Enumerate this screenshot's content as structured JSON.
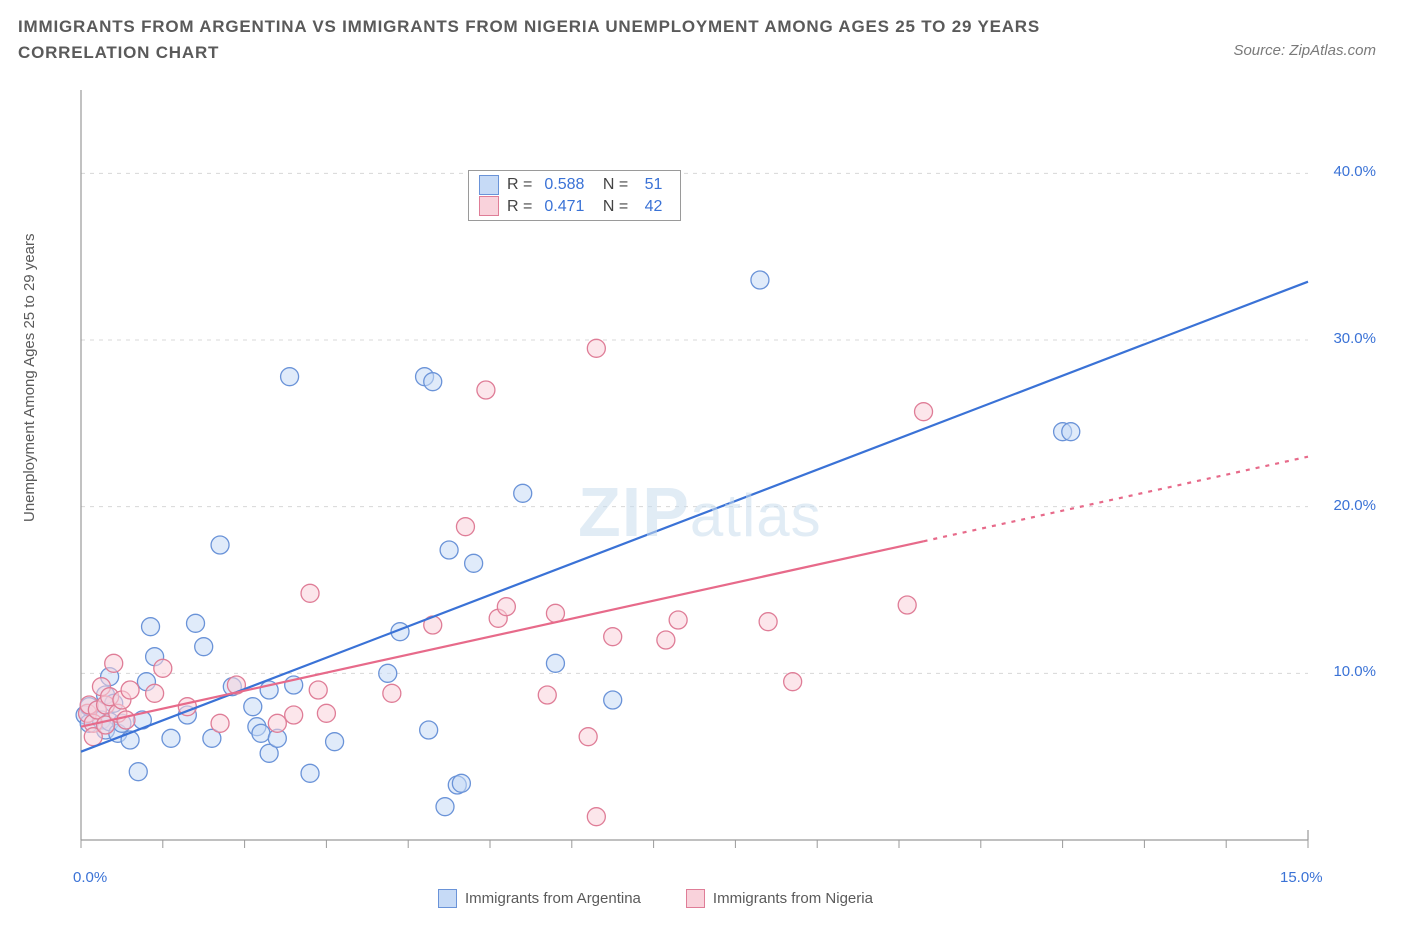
{
  "title": "IMMIGRANTS FROM ARGENTINA VS IMMIGRANTS FROM NIGERIA UNEMPLOYMENT AMONG AGES 25 TO 29 YEARS CORRELATION CHART",
  "source": "Source: ZipAtlas.com",
  "watermark_a": "ZIP",
  "watermark_b": "atlas",
  "y_axis_label": "Unemployment Among Ages 25 to 29 years",
  "legend_stats": {
    "r_label": "R =",
    "n_label": "N =",
    "series": [
      {
        "swatch_fill": "#c6daf6",
        "swatch_stroke": "#6a93d8",
        "r": "0.588",
        "n": "51"
      },
      {
        "swatch_fill": "#f9d2db",
        "swatch_stroke": "#df7d97",
        "r": "0.471",
        "n": "42"
      }
    ]
  },
  "bottom_legend": [
    {
      "fill": "#c6daf6",
      "stroke": "#6a93d8",
      "label": "Immigrants from Argentina"
    },
    {
      "fill": "#f9d2db",
      "stroke": "#df7d97",
      "label": "Immigrants from Nigeria"
    }
  ],
  "chart": {
    "type": "scatter",
    "background_color": "#ffffff",
    "grid_color": "#d8d8d8",
    "axis_color": "#9a9a9a",
    "tick_font_color": "#3a72d6",
    "tick_fontsize": 15,
    "xlim": [
      0,
      15
    ],
    "ylim": [
      0,
      45
    ],
    "y_ticks": [
      {
        "v": 10,
        "label": "10.0%"
      },
      {
        "v": 20,
        "label": "20.0%"
      },
      {
        "v": 30,
        "label": "30.0%"
      },
      {
        "v": 40,
        "label": "40.0%"
      }
    ],
    "x_ticks": [
      {
        "v": 0,
        "label": "0.0%"
      },
      {
        "v": 15,
        "label": "15.0%"
      }
    ],
    "x_minor_ticks": [
      1,
      2,
      3,
      4,
      5,
      6,
      7,
      8,
      9,
      10,
      11,
      12,
      13,
      14
    ],
    "marker_radius": 9,
    "marker_opacity": 0.55,
    "trend_lines": [
      {
        "color": "#3a72d6",
        "width": 2.2,
        "x0": 0,
        "y0": 5.3,
        "x1": 15,
        "y1": 33.5,
        "dash_from_x": null
      },
      {
        "color": "#e76a8a",
        "width": 2.2,
        "x0": 0,
        "y0": 6.8,
        "x1": 15,
        "y1": 23.0,
        "dash_from_x": 10.3
      }
    ],
    "series": [
      {
        "name": "argentina",
        "fill": "#c6daf6",
        "stroke": "#6a93d8",
        "points": [
          [
            0.05,
            7.5
          ],
          [
            0.1,
            7.0
          ],
          [
            0.1,
            8.0
          ],
          [
            0.2,
            7.8
          ],
          [
            0.25,
            7.2
          ],
          [
            0.3,
            6.6
          ],
          [
            0.3,
            8.7
          ],
          [
            0.35,
            9.8
          ],
          [
            0.35,
            7.1
          ],
          [
            0.4,
            8.2
          ],
          [
            0.45,
            6.4
          ],
          [
            0.5,
            7.0
          ],
          [
            0.6,
            6.0
          ],
          [
            0.7,
            4.1
          ],
          [
            0.75,
            7.2
          ],
          [
            0.8,
            9.5
          ],
          [
            0.85,
            12.8
          ],
          [
            0.9,
            11.0
          ],
          [
            1.1,
            6.1
          ],
          [
            1.3,
            7.5
          ],
          [
            1.4,
            13.0
          ],
          [
            1.5,
            11.6
          ],
          [
            1.6,
            6.1
          ],
          [
            1.7,
            17.7
          ],
          [
            1.85,
            9.2
          ],
          [
            2.1,
            8.0
          ],
          [
            2.15,
            6.8
          ],
          [
            2.2,
            6.4
          ],
          [
            2.3,
            9.0
          ],
          [
            2.3,
            5.2
          ],
          [
            2.4,
            6.1
          ],
          [
            2.55,
            27.8
          ],
          [
            2.6,
            9.3
          ],
          [
            2.8,
            4.0
          ],
          [
            3.1,
            5.9
          ],
          [
            3.75,
            10.0
          ],
          [
            3.9,
            12.5
          ],
          [
            4.2,
            27.8
          ],
          [
            4.25,
            6.6
          ],
          [
            4.3,
            27.5
          ],
          [
            4.45,
            2.0
          ],
          [
            4.5,
            17.4
          ],
          [
            4.6,
            3.3
          ],
          [
            4.65,
            3.4
          ],
          [
            4.8,
            16.6
          ],
          [
            5.4,
            20.8
          ],
          [
            5.8,
            10.6
          ],
          [
            6.5,
            8.4
          ],
          [
            8.3,
            33.6
          ],
          [
            12.0,
            24.5
          ],
          [
            12.1,
            24.5
          ]
        ]
      },
      {
        "name": "nigeria",
        "fill": "#f9d2db",
        "stroke": "#df7d97",
        "points": [
          [
            0.08,
            7.6
          ],
          [
            0.1,
            8.1
          ],
          [
            0.15,
            7.0
          ],
          [
            0.15,
            6.2
          ],
          [
            0.2,
            7.8
          ],
          [
            0.25,
            9.2
          ],
          [
            0.3,
            8.1
          ],
          [
            0.3,
            6.9
          ],
          [
            0.35,
            8.6
          ],
          [
            0.4,
            10.6
          ],
          [
            0.45,
            7.6
          ],
          [
            0.5,
            8.4
          ],
          [
            0.55,
            7.2
          ],
          [
            0.6,
            9.0
          ],
          [
            0.9,
            8.8
          ],
          [
            1.0,
            10.3
          ],
          [
            1.3,
            8.0
          ],
          [
            1.7,
            7.0
          ],
          [
            1.9,
            9.3
          ],
          [
            2.4,
            7.0
          ],
          [
            2.6,
            7.5
          ],
          [
            2.8,
            14.8
          ],
          [
            2.9,
            9.0
          ],
          [
            3.0,
            7.6
          ],
          [
            3.8,
            8.8
          ],
          [
            4.3,
            12.9
          ],
          [
            4.7,
            18.8
          ],
          [
            4.95,
            27.0
          ],
          [
            5.1,
            13.3
          ],
          [
            5.2,
            14.0
          ],
          [
            5.7,
            8.7
          ],
          [
            5.8,
            13.6
          ],
          [
            6.2,
            6.2
          ],
          [
            6.3,
            29.5
          ],
          [
            6.3,
            1.4
          ],
          [
            6.5,
            12.2
          ],
          [
            7.15,
            12.0
          ],
          [
            7.3,
            13.2
          ],
          [
            8.4,
            13.1
          ],
          [
            8.7,
            9.5
          ],
          [
            10.1,
            14.1
          ],
          [
            10.3,
            25.7
          ]
        ]
      }
    ]
  }
}
